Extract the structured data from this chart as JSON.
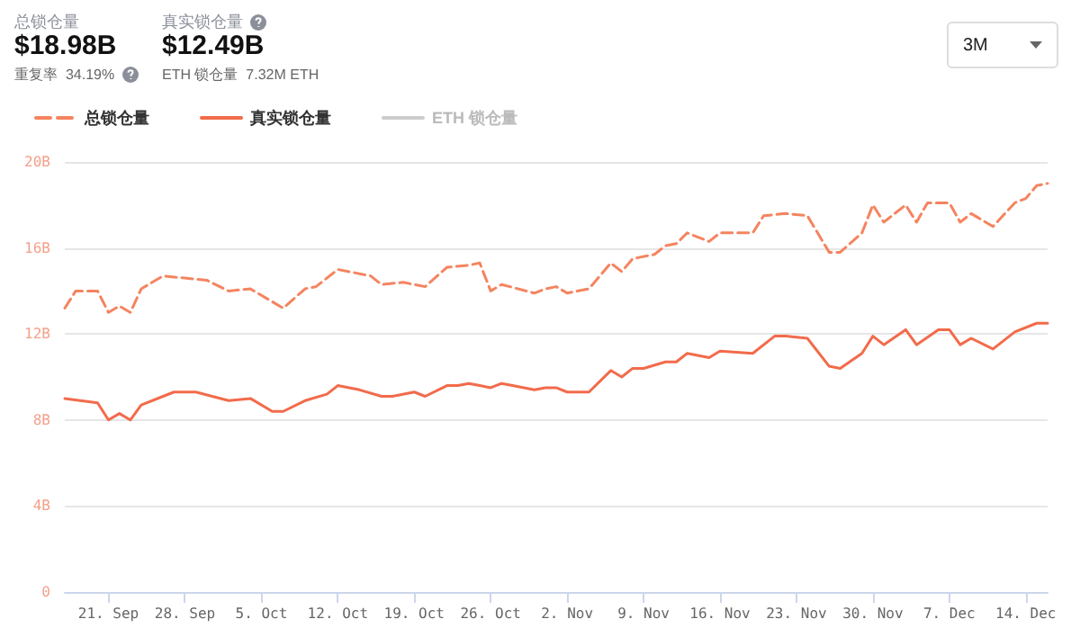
{
  "chart_data": {
    "type": "line",
    "annotations": [
      "总锁仓量",
      "$18.98B",
      "重复率  34.19%",
      "真实锁仓量",
      "$12.49B",
      "ETH 锁仓量  7.32M ETH",
      "3M"
    ],
    "series": [
      {
        "name": "总锁仓量",
        "color": "#f4845f",
        "line_style": "dashed",
        "x": [
          "--09-17",
          "--09-18",
          "--09-20",
          "--09-21",
          "--09-22",
          "--09-23",
          "--09-24",
          "--09-26",
          "--09-28",
          "--09-30",
          "--10-02",
          "--10-04",
          "--10-07",
          "--10-09",
          "--10-10",
          "--10-12",
          "--10-15",
          "--10-16",
          "--10-18",
          "--10-20",
          "--10-22",
          "--10-24",
          "--10-25",
          "--10-26",
          "--10-27",
          "--10-30",
          "--10-31",
          "--11-01",
          "--11-02",
          "--11-04",
          "--11-06",
          "--11-07",
          "--11-08",
          "--11-10",
          "--11-11",
          "--11-12",
          "--11-13",
          "--11-15",
          "--11-16",
          "--11-19",
          "--11-20",
          "--11-22",
          "--11-24",
          "--11-26",
          "--11-27",
          "--11-29",
          "--11-30",
          "--12-01",
          "--12-03",
          "--12-04",
          "--12-05",
          "--12-07",
          "--12-08",
          "--12-09",
          "--12-11",
          "--12-13",
          "--12-14",
          "--12-15",
          "--12-16"
        ],
        "values": [
          13.2,
          14.0,
          14.0,
          13.0,
          13.3,
          13.0,
          14.1,
          14.7,
          14.6,
          14.5,
          14.0,
          14.1,
          13.2,
          14.1,
          14.2,
          15.0,
          14.7,
          14.3,
          14.4,
          14.2,
          15.1,
          15.2,
          15.3,
          14.0,
          14.3,
          13.9,
          14.1,
          14.2,
          13.9,
          14.1,
          15.3,
          14.9,
          15.5,
          15.7,
          16.1,
          16.2,
          16.7,
          16.3,
          16.7,
          16.7,
          17.5,
          17.6,
          17.5,
          15.8,
          15.8,
          16.7,
          18.0,
          17.2,
          18.0,
          17.2,
          18.1,
          18.1,
          17.2,
          17.6,
          17.0,
          18.1,
          18.3,
          18.9,
          19.0
        ]
      },
      {
        "name": "真实锁仓量",
        "color": "#f26b4b",
        "line_style": "solid",
        "x": [
          "--09-17",
          "--09-20",
          "--09-21",
          "--09-22",
          "--09-23",
          "--09-24",
          "--09-26",
          "--09-27",
          "--09-29",
          "--10-02",
          "--10-04",
          "--10-06",
          "--10-07",
          "--10-09",
          "--10-11",
          "--10-12",
          "--10-14",
          "--10-16",
          "--10-17",
          "--10-19",
          "--10-20",
          "--10-22",
          "--10-23",
          "--10-24",
          "--10-25",
          "--10-26",
          "--10-27",
          "--10-28",
          "--10-30",
          "--10-31",
          "--11-01",
          "--11-02",
          "--11-04",
          "--11-06",
          "--11-07",
          "--11-08",
          "--11-09",
          "--11-11",
          "--11-12",
          "--11-13",
          "--11-15",
          "--11-16",
          "--11-19",
          "--11-21",
          "--11-22",
          "--11-24",
          "--11-26",
          "--11-27",
          "--11-29",
          "--11-30",
          "--12-01",
          "--12-03",
          "--12-04",
          "--12-06",
          "--12-07",
          "--12-08",
          "--12-09",
          "--12-11",
          "--12-13",
          "--12-15",
          "--12-16"
        ],
        "values": [
          9.0,
          8.8,
          8.0,
          8.3,
          8.0,
          8.7,
          9.1,
          9.3,
          9.3,
          8.9,
          9.0,
          8.4,
          8.4,
          8.9,
          9.2,
          9.6,
          9.4,
          9.1,
          9.1,
          9.3,
          9.1,
          9.6,
          9.6,
          9.7,
          9.6,
          9.5,
          9.7,
          9.6,
          9.4,
          9.5,
          9.5,
          9.3,
          9.3,
          10.3,
          10.0,
          10.4,
          10.4,
          10.7,
          10.7,
          11.1,
          10.9,
          11.2,
          11.1,
          11.9,
          11.9,
          11.8,
          10.5,
          10.4,
          11.1,
          11.9,
          11.5,
          12.2,
          11.5,
          12.2,
          12.2,
          11.5,
          11.8,
          11.3,
          12.1,
          12.5,
          12.5
        ]
      },
      {
        "name": "ETH 锁仓量",
        "color": "#cccccc",
        "line_style": "solid"
      }
    ],
    "xlim": [
      "--09-17",
      "--12-16"
    ],
    "xticks": [
      {
        "value": "--09-21",
        "label": "21. Sep"
      },
      {
        "value": "--09-28",
        "label": "28. Sep"
      },
      {
        "value": "--10-05",
        "label": "5. Oct"
      },
      {
        "value": "--10-12",
        "label": "12. Oct"
      },
      {
        "value": "--10-19",
        "label": "19. Oct"
      },
      {
        "value": "--10-26",
        "label": "26. Oct"
      },
      {
        "value": "--11-02",
        "label": "2. Nov"
      },
      {
        "value": "--11-09",
        "label": "9. Nov"
      },
      {
        "value": "--11-16",
        "label": "16. Nov"
      },
      {
        "value": "--11-23",
        "label": "23. Nov"
      },
      {
        "value": "--11-30",
        "label": "30. Nov"
      },
      {
        "value": "--12-07",
        "label": "7. Dec"
      },
      {
        "value": "--12-14",
        "label": "14. Dec"
      }
    ],
    "ylim": [
      0,
      20
    ],
    "yticks": [
      0,
      {
        "value": 4,
        "label": "4B"
      },
      {
        "value": 8,
        "label": "8B"
      },
      {
        "value": 12,
        "label": "12B"
      },
      {
        "value": 16,
        "label": "16B"
      },
      {
        "value": 20,
        "label": "20B"
      }
    ],
    "grid": "y",
    "legend": "top left",
    "marker": "none"
  }
}
